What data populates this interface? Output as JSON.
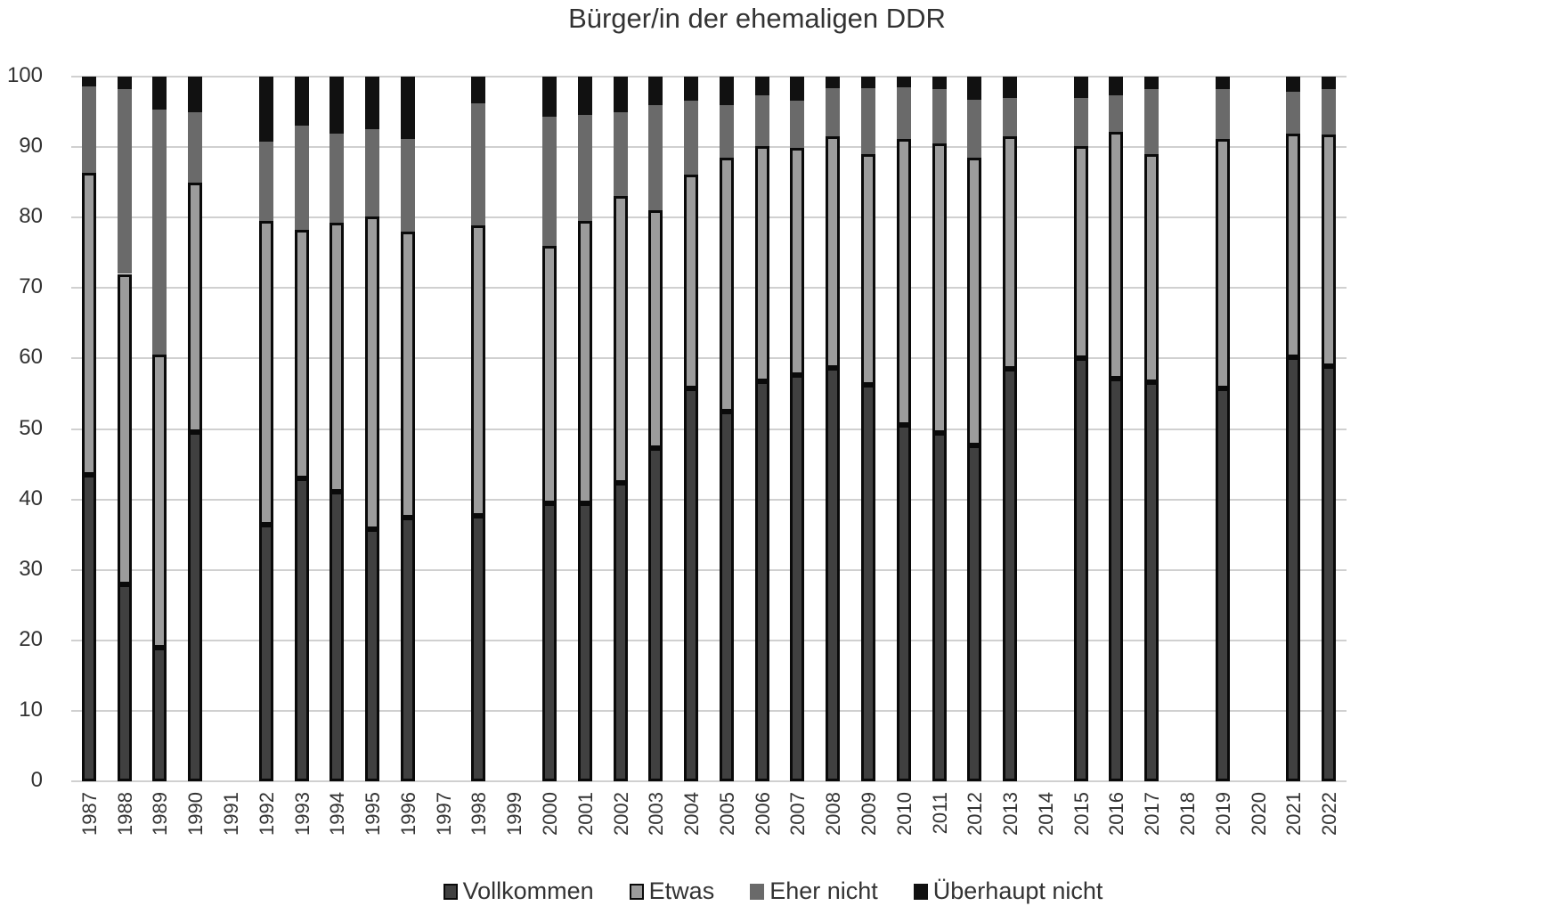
{
  "title": "Bürger/in der ehemaligen DDR",
  "legend": [
    {
      "key": "v",
      "label": "Vollkommen",
      "color": "#404040",
      "outlined": true
    },
    {
      "key": "e",
      "label": "Etwas",
      "color": "#9c9c9c",
      "outlined": true
    },
    {
      "key": "en",
      "label": "Eher nicht",
      "color": "#6a6a6a",
      "outlined": false
    },
    {
      "key": "u",
      "label": "Überhaupt nicht",
      "color": "#111111",
      "outlined": false
    }
  ],
  "chart_data": {
    "type": "bar",
    "stacked": true,
    "title": "Bürger/in der ehemaligen DDR",
    "xlabel": "",
    "ylabel": "",
    "ylim": [
      0,
      100
    ],
    "yticks": [
      0,
      10,
      20,
      30,
      40,
      50,
      60,
      70,
      80,
      90,
      100
    ],
    "grid": true,
    "legend_position": "bottom",
    "categories": [
      "1987",
      "1988",
      "1989",
      "1990",
      "1991",
      "1992",
      "1993",
      "1994",
      "1995",
      "1996",
      "1997",
      "1998",
      "1999",
      "2000",
      "2001",
      "2002",
      "2003",
      "2004",
      "2005",
      "2006",
      "2007",
      "2008",
      "2009",
      "2010",
      "2011",
      "2012",
      "2013",
      "2014",
      "2015",
      "2016",
      "2017",
      "2018",
      "2019",
      "2020",
      "2021",
      "2022"
    ],
    "series": [
      {
        "name": "Vollkommen",
        "values": [
          43.5,
          28.0,
          19.0,
          49.6,
          null,
          36.4,
          43.0,
          41.1,
          35.8,
          37.4,
          null,
          37.7,
          null,
          39.5,
          39.4,
          42.4,
          47.3,
          55.7,
          52.5,
          56.8,
          57.6,
          58.6,
          56.2,
          50.6,
          49.4,
          47.7,
          58.5,
          null,
          60.0,
          57.1,
          56.7,
          null,
          55.7,
          null,
          60.2,
          58.9
        ]
      },
      {
        "name": "Etwas",
        "values": [
          42.9,
          44.0,
          41.6,
          35.4,
          null,
          43.1,
          35.3,
          38.2,
          44.4,
          40.6,
          null,
          41.2,
          null,
          36.5,
          40.1,
          40.6,
          33.7,
          30.4,
          36.0,
          33.3,
          32.3,
          32.9,
          32.8,
          40.5,
          41.1,
          40.8,
          33.0,
          null,
          30.1,
          35.1,
          32.3,
          null,
          35.5,
          null,
          31.7,
          32.9
        ]
      },
      {
        "name": "Eher nicht",
        "values": [
          12.2,
          26.2,
          34.7,
          9.9,
          null,
          11.3,
          14.8,
          12.6,
          12.4,
          13.2,
          null,
          17.3,
          null,
          18.3,
          15.1,
          12.0,
          15.0,
          10.5,
          7.5,
          7.2,
          6.7,
          6.9,
          9.3,
          7.4,
          7.7,
          8.2,
          5.5,
          null,
          6.9,
          5.1,
          9.2,
          null,
          7.0,
          null,
          6.0,
          6.4
        ]
      },
      {
        "name": "Überhaupt nicht",
        "values": [
          1.4,
          1.8,
          4.7,
          5.1,
          null,
          9.2,
          6.9,
          8.1,
          7.4,
          8.8,
          null,
          3.8,
          null,
          5.7,
          5.4,
          5.0,
          4.0,
          3.4,
          4.0,
          2.7,
          3.4,
          1.6,
          1.7,
          1.5,
          1.8,
          3.3,
          3.0,
          null,
          3.0,
          2.7,
          1.8,
          null,
          1.8,
          null,
          2.1,
          1.8
        ]
      }
    ]
  }
}
